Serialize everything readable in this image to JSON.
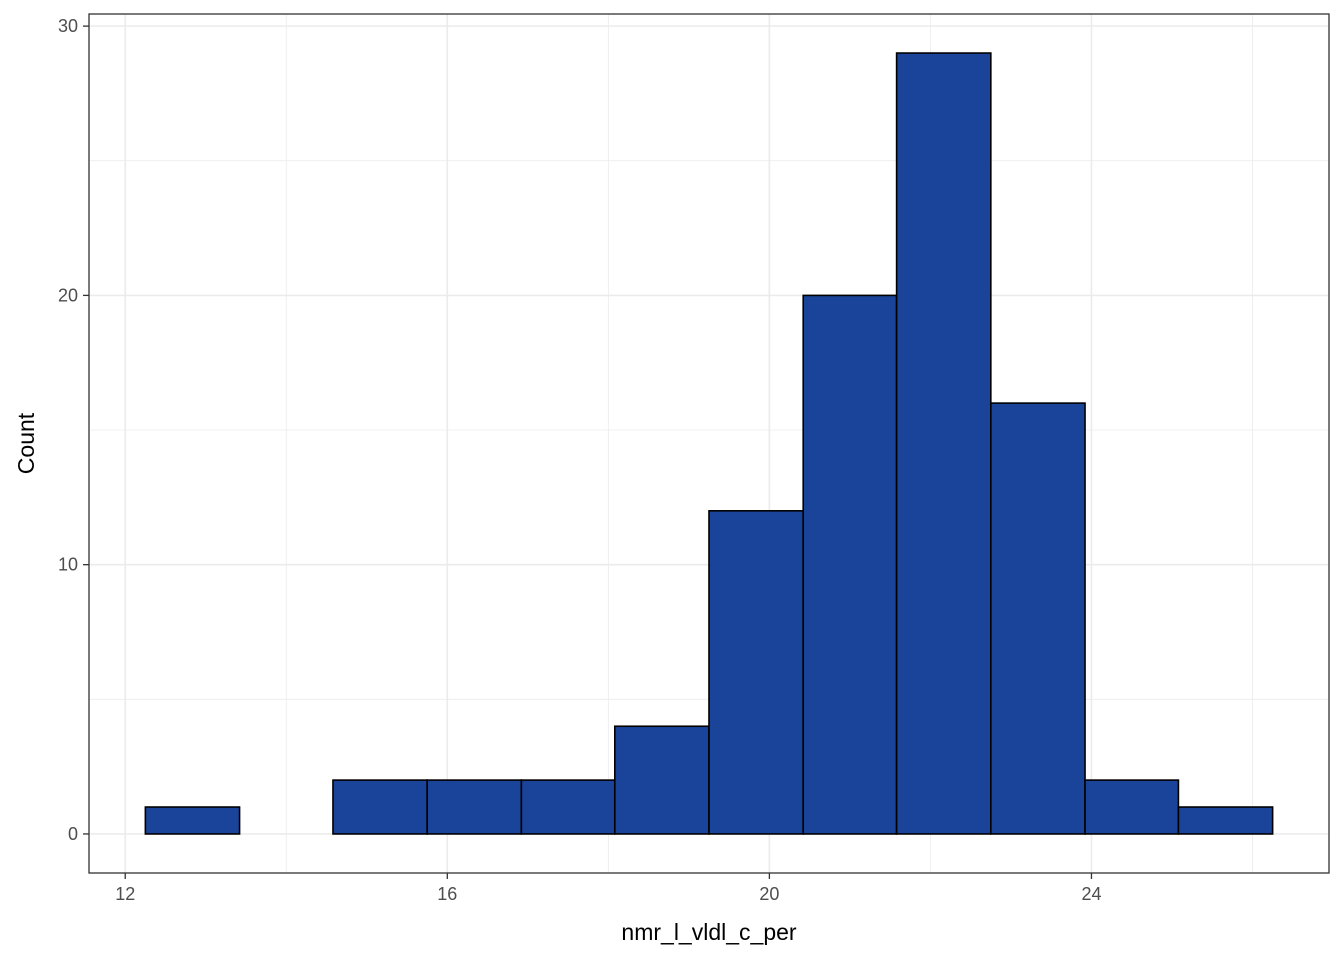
{
  "chart_data": {
    "type": "histogram",
    "title": "",
    "xlabel": "nmr_l_vldl_c_per",
    "ylabel": "Count",
    "bins": [
      {
        "x0": 12.25,
        "x1": 13.42,
        "count": 1
      },
      {
        "x0": 13.42,
        "x1": 14.58,
        "count": 0
      },
      {
        "x0": 14.58,
        "x1": 15.75,
        "count": 2
      },
      {
        "x0": 15.75,
        "x1": 16.92,
        "count": 2
      },
      {
        "x0": 16.92,
        "x1": 18.08,
        "count": 2
      },
      {
        "x0": 18.08,
        "x1": 19.25,
        "count": 4
      },
      {
        "x0": 19.25,
        "x1": 20.42,
        "count": 12
      },
      {
        "x0": 20.42,
        "x1": 21.58,
        "count": 20
      },
      {
        "x0": 21.58,
        "x1": 22.75,
        "count": 29
      },
      {
        "x0": 22.75,
        "x1": 23.92,
        "count": 16
      },
      {
        "x0": 23.92,
        "x1": 25.08,
        "count": 2
      },
      {
        "x0": 25.08,
        "x1": 26.25,
        "count": 1
      }
    ],
    "xlim": [
      11.55,
      26.95
    ],
    "ylim": [
      -1.45,
      30.45
    ],
    "x_ticks": [
      12,
      16,
      20,
      24
    ],
    "x_tick_labels": [
      "12",
      "16",
      "20",
      "24"
    ],
    "y_ticks": [
      0,
      10,
      20,
      30
    ],
    "y_tick_labels": [
      "0",
      "10",
      "20",
      "30"
    ],
    "x_minor": [
      14,
      18,
      22,
      26
    ],
    "y_minor": [
      5,
      15,
      25
    ],
    "grid": true,
    "colors": {
      "bar_fill": "#1a4499",
      "bar_stroke": "#000000",
      "grid": "#ebebeb",
      "panel_border": "#333333"
    }
  }
}
